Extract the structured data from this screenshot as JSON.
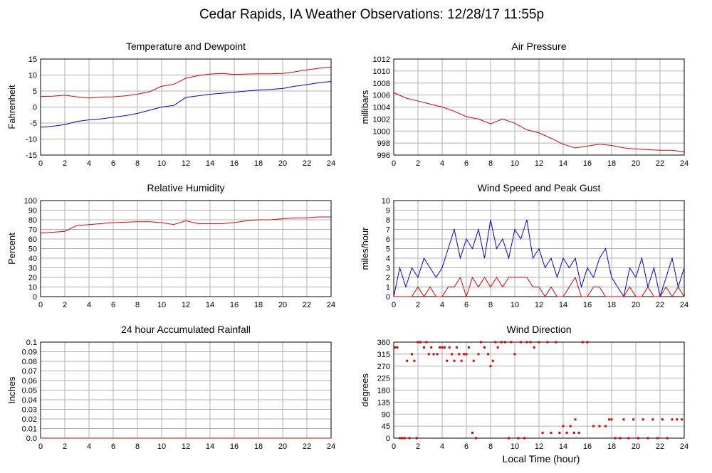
{
  "title": "Cedar Rapids, IA Weather Observations: 12/28/17 11:55p",
  "x_axis_label": "Local Time (hour)",
  "chart_data": [
    {
      "type": "line",
      "title": "Temperature and Dewpoint",
      "y_axis_label": "Fahrenheit",
      "x": [
        0,
        1,
        2,
        3,
        4,
        5,
        6,
        7,
        8,
        9,
        10,
        11,
        12,
        13,
        14,
        15,
        16,
        17,
        18,
        19,
        20,
        21,
        22,
        23,
        24
      ],
      "series": [
        {
          "color": "#e00000",
          "values": [
            3.3,
            3.4,
            3.7,
            3.2,
            2.8,
            3.1,
            3.2,
            3.5,
            4.0,
            4.8,
            6.5,
            7.1,
            9.0,
            9.8,
            10.3,
            10.5,
            10.2,
            10.3,
            10.4,
            10.4,
            10.5,
            11.0,
            11.6,
            12.1,
            12.5
          ]
        },
        {
          "color": "#0000e0",
          "values": [
            -6.3,
            -6.0,
            -5.5,
            -4.5,
            -4.0,
            -3.7,
            -3.2,
            -2.7,
            -2.0,
            -1.0,
            0.0,
            0.5,
            3.0,
            3.5,
            4.0,
            4.3,
            4.6,
            5.0,
            5.3,
            5.5,
            5.8,
            6.5,
            7.0,
            7.6,
            8.0
          ]
        }
      ],
      "xlim": [
        0,
        24
      ],
      "xticks": [
        0,
        2,
        4,
        6,
        8,
        10,
        12,
        14,
        16,
        18,
        20,
        22,
        24
      ],
      "ylim": [
        -15,
        15
      ],
      "yticks": [
        -15,
        -10,
        -5,
        0,
        5,
        10,
        15
      ],
      "grid": true
    },
    {
      "type": "line",
      "title": "Air Pressure",
      "y_axis_label": "millibars",
      "x": [
        0,
        1,
        2,
        3,
        4,
        5,
        6,
        7,
        8,
        9,
        10,
        11,
        12,
        13,
        14,
        15,
        16,
        17,
        18,
        19,
        20,
        21,
        22,
        23,
        24
      ],
      "series": [
        {
          "color": "#e00000",
          "values": [
            1006.4,
            1005.5,
            1005.0,
            1004.5,
            1004.0,
            1003.3,
            1002.4,
            1002.0,
            1001.2,
            1002.0,
            1001.3,
            1000.2,
            999.7,
            998.8,
            997.8,
            997.2,
            997.5,
            997.8,
            997.6,
            997.2,
            997.0,
            996.9,
            996.8,
            996.8,
            996.5
          ]
        }
      ],
      "xlim": [
        0,
        24
      ],
      "xticks": [
        0,
        2,
        4,
        6,
        8,
        10,
        12,
        14,
        16,
        18,
        20,
        22,
        24
      ],
      "ylim": [
        996,
        1012
      ],
      "yticks": [
        996,
        998,
        1000,
        1002,
        1004,
        1006,
        1008,
        1010,
        1012
      ],
      "grid": true
    },
    {
      "type": "line",
      "title": "Relative Humidity",
      "y_axis_label": "Percent",
      "x": [
        0,
        1,
        2,
        3,
        4,
        5,
        6,
        7,
        8,
        9,
        10,
        11,
        12,
        13,
        14,
        15,
        16,
        17,
        18,
        19,
        20,
        21,
        22,
        23,
        24
      ],
      "series": [
        {
          "color": "#e00000",
          "values": [
            66,
            67,
            68,
            74,
            75,
            76,
            77,
            77.5,
            78,
            78,
            77,
            75,
            79,
            76,
            76,
            76,
            77,
            79,
            80,
            80,
            81,
            82,
            82,
            83,
            83
          ]
        }
      ],
      "xlim": [
        0,
        24
      ],
      "xticks": [
        0,
        2,
        4,
        6,
        8,
        10,
        12,
        14,
        16,
        18,
        20,
        22,
        24
      ],
      "ylim": [
        0,
        100
      ],
      "yticks": [
        0,
        10,
        20,
        30,
        40,
        50,
        60,
        70,
        80,
        90,
        100
      ],
      "grid": true
    },
    {
      "type": "line",
      "title": "Wind Speed and Peak Gust",
      "y_axis_label": "miles/hour",
      "x": [
        0,
        0.5,
        1,
        1.5,
        2,
        2.5,
        3,
        3.5,
        4,
        4.5,
        5,
        5.5,
        6,
        6.5,
        7,
        7.5,
        8,
        8.5,
        9,
        9.5,
        10,
        10.5,
        11,
        11.5,
        12,
        12.5,
        13,
        13.5,
        14,
        14.5,
        15,
        15.5,
        16,
        16.5,
        17,
        17.5,
        18,
        18.5,
        19,
        19.5,
        20,
        20.5,
        21,
        21.5,
        22,
        22.5,
        23,
        23.5,
        24
      ],
      "series": [
        {
          "color": "#0000e0",
          "values": [
            0,
            3,
            1,
            3,
            2,
            4,
            3,
            2,
            3,
            5,
            7,
            4,
            6,
            5,
            7,
            4,
            8,
            5,
            6,
            4,
            7,
            6,
            8,
            4,
            5,
            3,
            4,
            2,
            4,
            3,
            4,
            1,
            3,
            2,
            4,
            5,
            2,
            1,
            0,
            3,
            2,
            4,
            1,
            3,
            0,
            2,
            4,
            1,
            3
          ]
        },
        {
          "color": "#e00000",
          "values": [
            0,
            0,
            0,
            0,
            1,
            0,
            1,
            0,
            0,
            1,
            1,
            2,
            0,
            2,
            1,
            2,
            1,
            2,
            1,
            2,
            2,
            2,
            2,
            1,
            1,
            0,
            1,
            0,
            0,
            1,
            2,
            0,
            0,
            1,
            1,
            0,
            0,
            0,
            0,
            1,
            0,
            0,
            1,
            0,
            0,
            1,
            0,
            1,
            0
          ]
        }
      ],
      "xlim": [
        0,
        24
      ],
      "xticks": [
        0,
        2,
        4,
        6,
        8,
        10,
        12,
        14,
        16,
        18,
        20,
        22,
        24
      ],
      "ylim": [
        0,
        10
      ],
      "yticks": [
        0,
        1,
        2,
        3,
        4,
        5,
        6,
        7,
        8,
        9,
        10
      ],
      "grid": true
    },
    {
      "type": "line",
      "title": "24 hour Accumulated Rainfall",
      "y_axis_label": "Inches",
      "x": [
        0,
        24
      ],
      "series": [
        {
          "color": "#0000e0",
          "values": [
            0,
            0
          ]
        },
        {
          "color": "#e00000",
          "values": [
            0,
            0
          ]
        }
      ],
      "xlim": [
        0,
        24
      ],
      "xticks": [
        0,
        2,
        4,
        6,
        8,
        10,
        12,
        14,
        16,
        18,
        20,
        22,
        24
      ],
      "ylim": [
        0,
        0.1
      ],
      "yticks": [
        {
          "value": 0,
          "label": "0.0"
        },
        0.01,
        0.02,
        0.03,
        0.04,
        0.05,
        0.06,
        0.07,
        0.08,
        0.09,
        0.1
      ],
      "grid": true
    },
    {
      "type": "scatter",
      "title": "Wind Direction",
      "y_axis_label": "degrees",
      "x": [
        0.1,
        0.3,
        0.5,
        0.7,
        0.9,
        1.1,
        1.3,
        1.5,
        1.7,
        1.9,
        2.0,
        2.2,
        2.5,
        2.7,
        2.9,
        3.1,
        3.3,
        3.6,
        3.8,
        4.0,
        4.2,
        4.4,
        4.6,
        4.8,
        5.0,
        5.2,
        5.4,
        5.6,
        5.8,
        6.0,
        6.2,
        6.5,
        6.6,
        6.8,
        7.0,
        7.2,
        7.5,
        7.8,
        8.0,
        8.2,
        8.4,
        8.6,
        8.9,
        9.2,
        9.5,
        9.7,
        10.0,
        10.3,
        10.5,
        10.8,
        11.0,
        11.3,
        11.6,
        12.0,
        12.3,
        12.7,
        13.0,
        13.4,
        13.7,
        14.0,
        14.3,
        14.6,
        14.9,
        15.0,
        15.3,
        15.6,
        16.0,
        16.5,
        17.0,
        17.5,
        17.8,
        18.0,
        18.3,
        18.7,
        19.0,
        19.4,
        19.8,
        20.2,
        20.6,
        21.0,
        21.4,
        21.8,
        22.2,
        22.6,
        23.0,
        23.4,
        23.8
      ],
      "values": [
        340,
        340,
        0,
        0,
        0,
        290,
        0,
        315,
        290,
        0,
        360,
        360,
        340,
        360,
        315,
        340,
        315,
        315,
        340,
        340,
        340,
        290,
        340,
        315,
        290,
        340,
        315,
        290,
        315,
        315,
        340,
        20,
        290,
        0,
        315,
        360,
        340,
        315,
        270,
        290,
        360,
        340,
        360,
        360,
        0,
        360,
        315,
        0,
        360,
        0,
        360,
        360,
        340,
        360,
        20,
        360,
        20,
        360,
        20,
        45,
        20,
        45,
        20,
        70,
        20,
        360,
        360,
        45,
        45,
        45,
        70,
        70,
        0,
        0,
        70,
        0,
        70,
        0,
        70,
        0,
        70,
        0,
        70,
        0,
        70,
        70,
        70
      ],
      "color": "#e00000",
      "xlim": [
        0,
        24
      ],
      "xticks": [
        0,
        2,
        4,
        6,
        8,
        10,
        12,
        14,
        16,
        18,
        20,
        22,
        24
      ],
      "ylim": [
        0,
        360
      ],
      "yticks": [
        0,
        45,
        90,
        135,
        180,
        225,
        270,
        315,
        360
      ],
      "grid": true
    }
  ]
}
